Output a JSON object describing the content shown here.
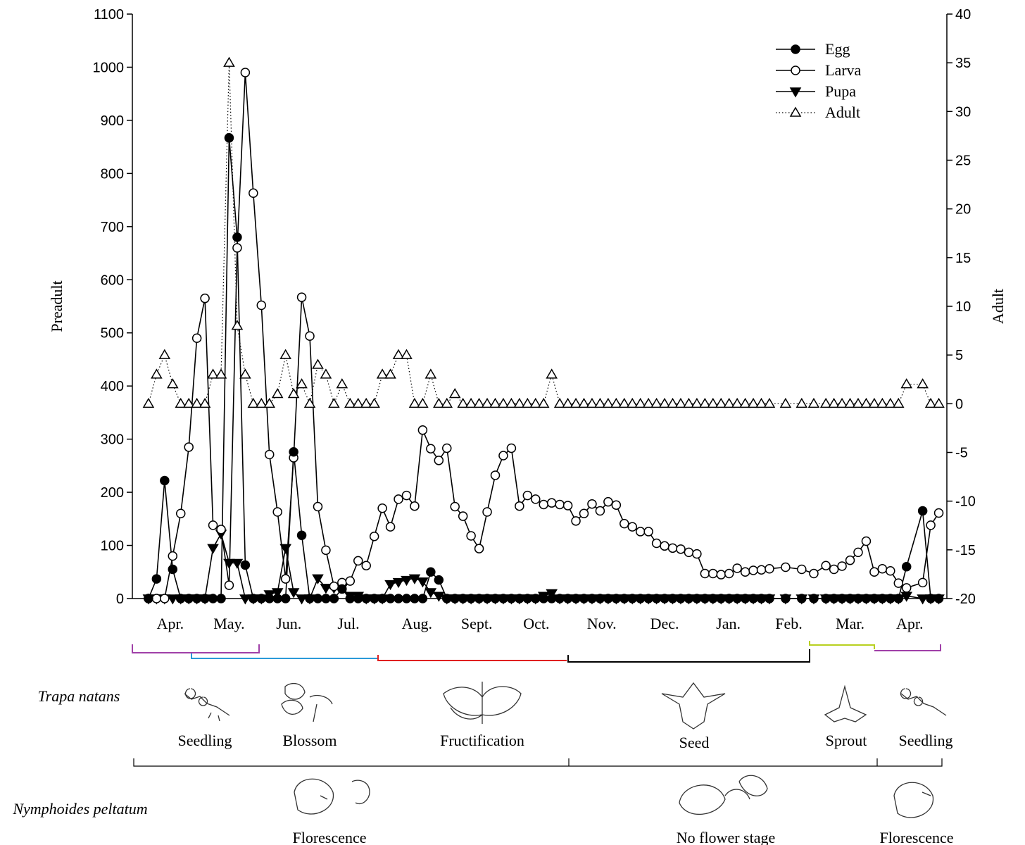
{
  "chart_data": {
    "type": "line",
    "y_label": "Preadult",
    "y2_label": "Adult",
    "ylim": [
      0,
      1100
    ],
    "yticks": [
      0,
      100,
      200,
      300,
      400,
      500,
      600,
      700,
      800,
      900,
      1000,
      1100
    ],
    "y2lim": [
      -20,
      40
    ],
    "y2ticks": [
      -20,
      -15,
      -10,
      -5,
      0,
      5,
      10,
      15,
      20,
      25,
      30,
      35,
      40
    ],
    "xlim": [
      -2,
      99
    ],
    "xticks": [
      {
        "value": 2.7,
        "label": "Apr."
      },
      {
        "value": 10,
        "label": "May."
      },
      {
        "value": 17.4,
        "label": "Jun."
      },
      {
        "value": 24.8,
        "label": "Jul."
      },
      {
        "value": 33.3,
        "label": "Aug."
      },
      {
        "value": 40.7,
        "label": "Sept."
      },
      {
        "value": 48.1,
        "label": "Oct."
      },
      {
        "value": 56.2,
        "label": "Nov."
      },
      {
        "value": 64,
        "label": "Dec."
      },
      {
        "value": 71.9,
        "label": "Jan."
      },
      {
        "value": 79.4,
        "label": "Feb."
      },
      {
        "value": 87,
        "label": "Mar."
      },
      {
        "value": 94.4,
        "label": "Apr."
      }
    ],
    "legend": "upper right",
    "x": [
      0,
      1,
      2,
      3,
      4,
      5,
      6,
      7,
      8,
      9,
      10,
      11,
      12,
      13,
      14,
      15,
      16,
      17,
      18,
      19,
      20,
      21,
      22,
      23,
      24,
      25,
      26,
      27,
      28,
      29,
      30,
      31,
      32,
      33,
      34,
      35,
      36,
      37,
      38,
      39,
      40,
      41,
      42,
      43,
      44,
      45,
      46,
      47,
      48,
      49,
      50,
      51,
      52,
      53,
      54,
      55,
      56,
      57,
      58,
      59,
      60,
      61,
      62,
      63,
      64,
      65,
      66,
      67,
      68,
      69,
      70,
      71,
      72,
      73,
      74,
      75,
      76,
      77,
      79,
      81,
      82.5,
      84,
      85,
      86,
      87,
      88,
      89,
      90,
      91,
      92,
      93,
      94,
      96,
      97,
      98
    ],
    "series": [
      {
        "name": "Egg",
        "color": "#000000",
        "marker": "filled-circle",
        "dash": "solid",
        "axis": "y",
        "values": [
          0,
          37,
          222,
          55,
          0,
          0,
          0,
          0,
          0,
          0,
          867,
          680,
          63,
          0,
          0,
          0,
          0,
          0,
          276,
          119,
          0,
          0,
          0,
          0,
          18,
          0,
          0,
          0,
          0,
          0,
          0,
          0,
          0,
          0,
          0,
          50,
          35,
          0,
          0,
          0,
          0,
          0,
          0,
          0,
          0,
          0,
          0,
          0,
          0,
          0,
          0,
          0,
          0,
          0,
          0,
          0,
          0,
          0,
          0,
          0,
          0,
          0,
          0,
          0,
          0,
          0,
          0,
          0,
          0,
          0,
          0,
          0,
          0,
          0,
          0,
          0,
          0,
          0,
          0,
          0,
          0,
          0,
          0,
          0,
          0,
          0,
          0,
          0,
          0,
          0,
          0,
          60,
          165,
          0,
          0
        ]
      },
      {
        "name": "Larva",
        "color": "#000000",
        "marker": "open-circle",
        "dash": "solid",
        "axis": "y",
        "values": [
          0,
          0,
          0,
          80,
          160,
          285,
          490,
          565,
          138,
          130,
          25,
          660,
          990,
          763,
          552,
          271,
          163,
          37,
          265,
          567,
          494,
          173,
          91,
          23,
          30,
          33,
          71,
          62,
          117,
          170,
          135,
          187,
          194,
          174,
          317,
          282,
          260,
          283,
          173,
          155,
          118,
          94,
          163,
          232,
          269,
          283,
          174,
          194,
          187,
          177,
          180,
          177,
          175,
          146,
          160,
          178,
          165,
          182,
          176,
          141,
          135,
          126,
          126,
          104,
          99,
          95,
          93,
          87,
          84,
          47,
          47,
          45,
          47,
          57,
          50,
          53,
          54,
          56,
          59,
          55,
          47,
          62,
          55,
          61,
          72,
          87,
          108,
          50,
          56,
          52,
          29,
          20,
          30,
          138,
          161
        ]
      },
      {
        "name": "Pupa",
        "color": "#000000",
        "marker": "filled-down-triangle",
        "dash": "solid",
        "axis": "y",
        "values": [
          0,
          0,
          0,
          0,
          0,
          0,
          0,
          0,
          95,
          122,
          67,
          67,
          0,
          0,
          0,
          8,
          12,
          95,
          12,
          0,
          0,
          38,
          20,
          20,
          20,
          5,
          5,
          0,
          0,
          0,
          27,
          31,
          35,
          38,
          32,
          12,
          5,
          0,
          0,
          0,
          0,
          0,
          0,
          0,
          0,
          0,
          0,
          0,
          0,
          5,
          10,
          0,
          0,
          0,
          0,
          0,
          0,
          0,
          0,
          0,
          0,
          0,
          0,
          0,
          0,
          0,
          0,
          0,
          0,
          0,
          0,
          0,
          0,
          0,
          0,
          0,
          0,
          0,
          0,
          0,
          0,
          0,
          0,
          0,
          0,
          0,
          0,
          0,
          0,
          0,
          0,
          5,
          0,
          0,
          0
        ]
      },
      {
        "name": "Adult",
        "color": "#000000",
        "marker": "open-up-triangle",
        "dash": "dotted",
        "axis": "y2",
        "values": [
          0,
          3,
          5,
          2,
          0,
          0,
          0,
          0,
          3,
          3,
          35,
          8,
          3,
          0,
          0,
          0,
          1,
          5,
          1,
          2,
          0,
          4,
          3,
          0,
          2,
          0,
          0,
          0,
          0,
          3,
          3,
          5,
          5,
          0,
          0,
          3,
          0,
          0,
          1,
          0,
          0,
          0,
          0,
          0,
          0,
          0,
          0,
          0,
          0,
          0,
          3,
          0,
          0,
          0,
          0,
          0,
          0,
          0,
          0,
          0,
          0,
          0,
          0,
          0,
          0,
          0,
          0,
          0,
          0,
          0,
          0,
          0,
          0,
          0,
          0,
          0,
          0,
          0,
          0,
          0,
          0,
          0,
          0,
          0,
          0,
          0,
          0,
          0,
          0,
          0,
          0,
          2,
          2,
          0,
          0
        ]
      }
    ],
    "trapa_label": "Trapa natans",
    "trapa_stages": [
      "Seedling",
      "Blossom",
      "Fructification",
      "Seed",
      "Sprout",
      "Seedling"
    ],
    "nymphoides_label": "Nymphoides peltatum",
    "nymphoides_stages": [
      "Florescence",
      "No flower stage",
      "Florescence"
    ]
  }
}
